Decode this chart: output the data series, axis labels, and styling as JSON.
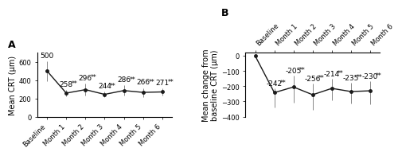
{
  "panel_a": {
    "x_labels": [
      "Baseline",
      "Month 1",
      "Month 2",
      "Month 3",
      "Month 4",
      "Month 5",
      "Month 6"
    ],
    "y_values": [
      500,
      258,
      296,
      244,
      286,
      266,
      271
    ],
    "y_err_low": [
      110,
      38,
      65,
      28,
      55,
      48,
      42
    ],
    "y_err_high": [
      110,
      38,
      65,
      28,
      55,
      48,
      42
    ],
    "ann_base": [
      "500",
      "258",
      "296",
      "244",
      "286",
      "266",
      "271"
    ],
    "ann_sig": [
      "",
      "**",
      "**",
      "**",
      "**",
      "**",
      "**"
    ],
    "ylabel": "Mean CRT (μm)",
    "ylim": [
      0,
      700
    ],
    "yticks": [
      0,
      200,
      400,
      600
    ],
    "panel_label": "A"
  },
  "panel_b": {
    "x_labels": [
      "Baseline",
      "Month 1",
      "Month 2",
      "Month 3",
      "Month 4",
      "Month 5",
      "Month 6"
    ],
    "y_values": [
      0,
      -242,
      -205,
      -256,
      -214,
      -235,
      -230
    ],
    "y_err_low": [
      0,
      95,
      105,
      100,
      80,
      80,
      88
    ],
    "y_err_high": [
      0,
      28,
      75,
      75,
      65,
      60,
      65
    ],
    "ann_base": [
      "",
      "-242",
      "-205",
      "-256",
      "-214",
      "-235",
      "-230"
    ],
    "ann_sig": [
      "",
      "**",
      "**",
      "**",
      "**",
      "**",
      "**"
    ],
    "ylabel": "Mean change from\nbaseline CRT (μm)",
    "ylim": [
      -400,
      20
    ],
    "yticks": [
      -400,
      -300,
      -200,
      -100,
      0
    ],
    "panel_label": "B"
  },
  "line_color": "#1a1a1a",
  "error_color": "#888888",
  "font_size": 7,
  "tick_font_size": 6.0,
  "annotation_font_size": 6.5,
  "sig_font_size": 5.5
}
